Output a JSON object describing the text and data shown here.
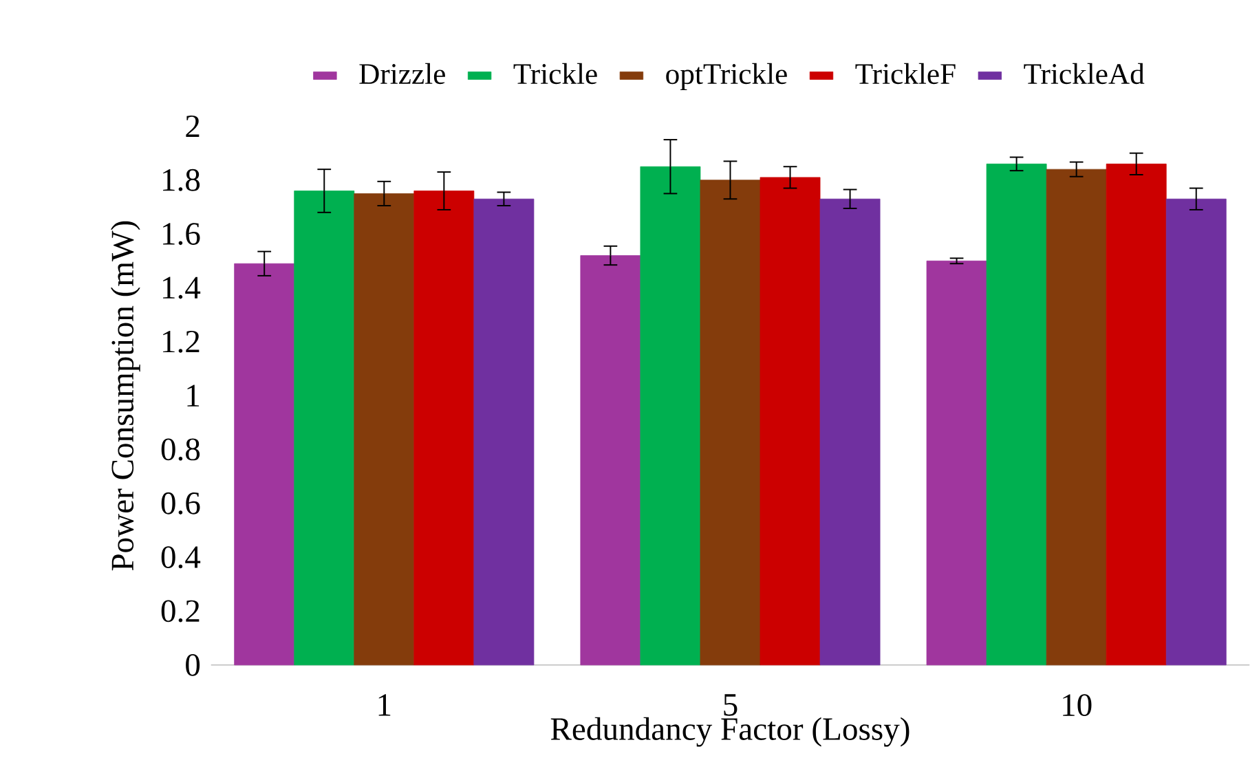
{
  "chart_data": {
    "type": "bar",
    "xlabel": "Redundancy Factor (Lossy)",
    "ylabel": "Power Consumption (mW)",
    "categories": [
      "1",
      "5",
      "10"
    ],
    "series": [
      {
        "name": "Drizzle",
        "color": "#a0369e",
        "values": [
          1.49,
          1.52,
          1.5
        ],
        "errors": [
          0.045,
          0.035,
          0.01
        ]
      },
      {
        "name": "Trickle",
        "color": "#00b050",
        "values": [
          1.76,
          1.85,
          1.86
        ],
        "errors": [
          0.08,
          0.1,
          0.025
        ]
      },
      {
        "name": "optTrickle",
        "color": "#843c0c",
        "values": [
          1.75,
          1.8,
          1.84
        ],
        "errors": [
          0.045,
          0.07,
          0.027
        ]
      },
      {
        "name": "TrickleF",
        "color": "#cc0000",
        "values": [
          1.76,
          1.81,
          1.86
        ],
        "errors": [
          0.07,
          0.04,
          0.04
        ]
      },
      {
        "name": "TrickleAd",
        "color": "#7030a0",
        "values": [
          1.73,
          1.73,
          1.73
        ],
        "errors": [
          0.025,
          0.035,
          0.04
        ]
      }
    ],
    "ylim": [
      0,
      2
    ],
    "yticks": [
      0,
      0.2,
      0.4,
      0.6,
      0.8,
      1,
      1.2,
      1.4,
      1.6,
      1.8,
      2
    ],
    "grid": false,
    "legend": "top"
  }
}
